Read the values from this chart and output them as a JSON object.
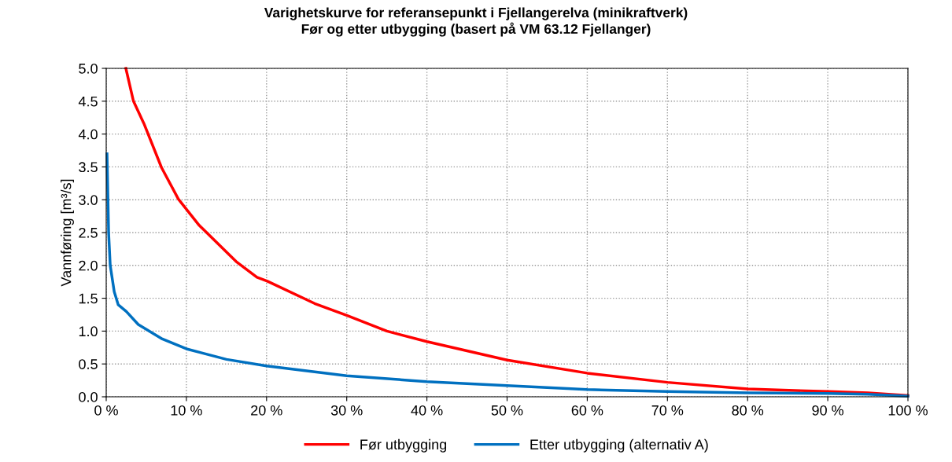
{
  "chart_data": {
    "type": "line",
    "title": "Varighetskurve for referansepunkt i Fjellangerelva (minikraftverk)\nFør og etter utbygging (basert på VM 63.12 Fjellanger)",
    "ylabel": "Vannføring [m³/s]",
    "series": [
      {
        "name": "Før utbygging",
        "color": "#ff0000",
        "x": [
          2.45,
          3.4,
          4.7,
          6.9,
          9.0,
          11.6,
          16.2,
          18.8,
          20.1,
          26,
          30,
          35,
          40,
          50,
          60,
          70,
          80,
          90,
          95,
          100
        ],
        "values": [
          5.0,
          4.5,
          4.16,
          3.49,
          3.01,
          2.61,
          2.06,
          1.82,
          1.76,
          1.42,
          1.24,
          1.0,
          0.84,
          0.56,
          0.36,
          0.22,
          0.12,
          0.08,
          0.06,
          0.02
        ]
      },
      {
        "name": "Etter utbygging (alternativ A)",
        "color": "#0070c0",
        "x": [
          0.1,
          0.3,
          0.5,
          1,
          1.5,
          2.5,
          4,
          7,
          10,
          15,
          20,
          26,
          30,
          40,
          50,
          60,
          70,
          80,
          90,
          95,
          100
        ],
        "values": [
          3.7,
          2.5,
          2.0,
          1.6,
          1.4,
          1.3,
          1.1,
          0.88,
          0.73,
          0.57,
          0.47,
          0.38,
          0.32,
          0.23,
          0.17,
          0.11,
          0.08,
          0.06,
          0.05,
          0.04,
          0.01
        ]
      }
    ],
    "xlim": [
      0,
      100
    ],
    "xticks": [
      {
        "value": 0,
        "label": "0 %"
      },
      {
        "value": 10,
        "label": "10 %"
      },
      {
        "value": 20,
        "label": "20 %"
      },
      {
        "value": 30,
        "label": "30 %"
      },
      {
        "value": 40,
        "label": "40 %"
      },
      {
        "value": 50,
        "label": "50 %"
      },
      {
        "value": 60,
        "label": "60 %"
      },
      {
        "value": 70,
        "label": "70 %"
      },
      {
        "value": 80,
        "label": "80 %"
      },
      {
        "value": 90,
        "label": "90 %"
      },
      {
        "value": 100,
        "label": "100 %"
      }
    ],
    "ylim": [
      0,
      5
    ],
    "yticks": [
      {
        "value": 0,
        "label": "0.0"
      },
      {
        "value": 0.5,
        "label": "0.5"
      },
      {
        "value": 1,
        "label": "1.0"
      },
      {
        "value": 1.5,
        "label": "1.5"
      },
      {
        "value": 2,
        "label": "2.0"
      },
      {
        "value": 2.5,
        "label": "2.5"
      },
      {
        "value": 3,
        "label": "3.0"
      },
      {
        "value": 3.5,
        "label": "3.5"
      },
      {
        "value": 4,
        "label": "4.0"
      },
      {
        "value": 4.5,
        "label": "4.5"
      },
      {
        "value": 5,
        "label": "5.0"
      }
    ],
    "grid": true,
    "legend": "bottom",
    "marker": "none",
    "line_style": "solid"
  }
}
